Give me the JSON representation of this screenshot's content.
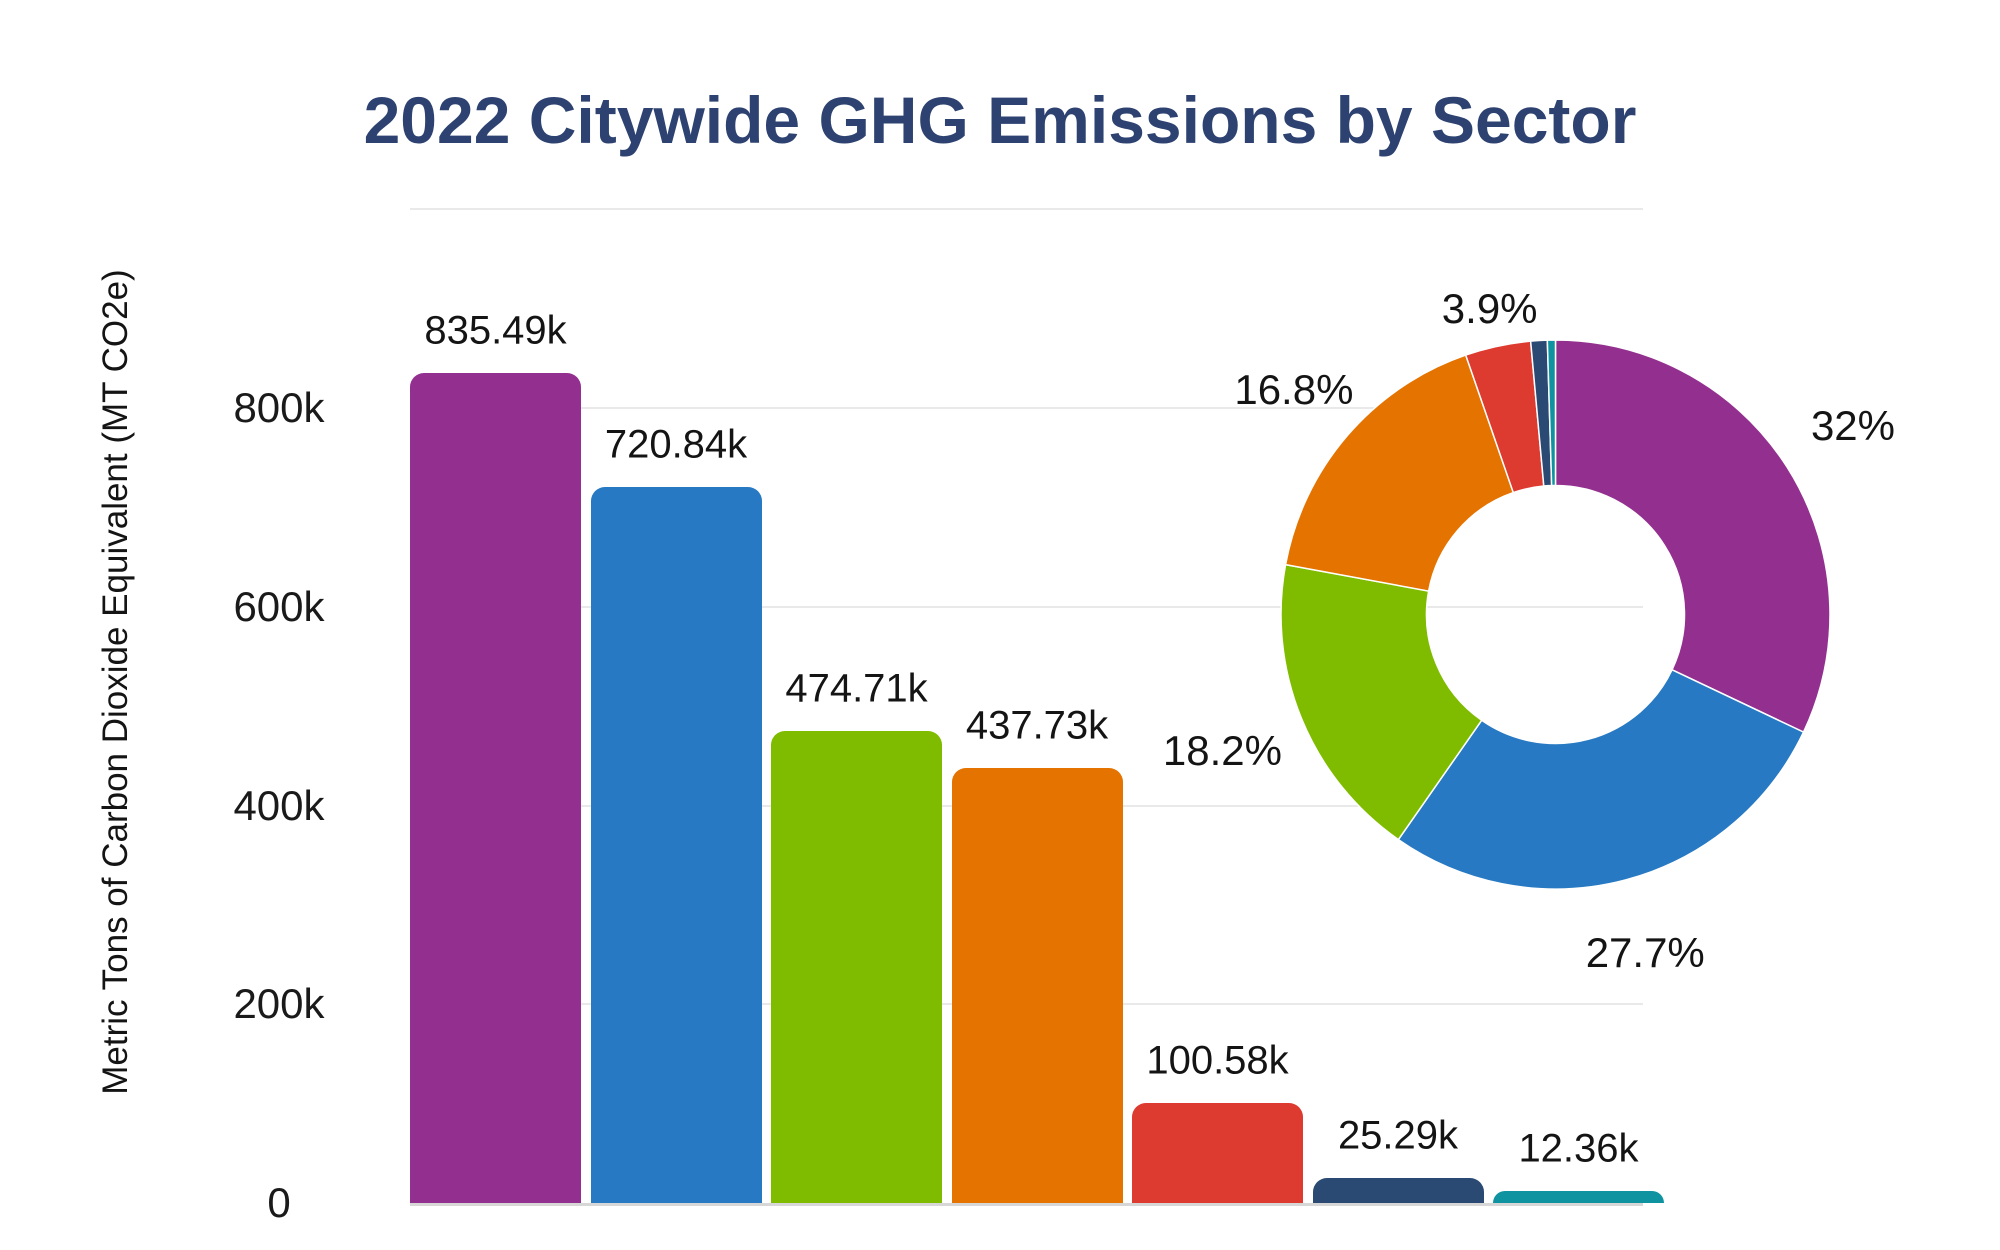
{
  "title": "2022 Citywide GHG Emissions by Sector",
  "title_color": "#2d4270",
  "background_color": "#ffffff",
  "chart_data": [
    {
      "type": "bar",
      "title": "2022 Citywide GHG Emissions by Sector",
      "xlabel": "",
      "ylabel": "Metric Tons of Carbon Dioxide Equivalent (MT CO2e)",
      "categories": [
        "",
        "",
        "",
        "",
        "",
        "",
        ""
      ],
      "values": [
        835490,
        720840,
        474710,
        437730,
        100580,
        25290,
        12360
      ],
      "data_labels": [
        "835.49k",
        "720.84k",
        "474.71k",
        "437.73k",
        "100.58k",
        "25.29k",
        "12.36k"
      ],
      "bar_colors": [
        "#93308f",
        "#2679c2",
        "#7fbc00",
        "#e47300",
        "#dd3a30",
        "#2a4a74",
        "#0f93a0"
      ],
      "yticks": [
        {
          "v": 0,
          "label": "0"
        },
        {
          "v": 200000,
          "label": "200k"
        },
        {
          "v": 400000,
          "label": "400k"
        },
        {
          "v": 600000,
          "label": "600k"
        },
        {
          "v": 800000,
          "label": "800k"
        },
        {
          "v": 1000000,
          "label": ""
        }
      ],
      "ylim": [
        0,
        1040000
      ],
      "grid": true,
      "legend": "none"
    },
    {
      "type": "pie",
      "subtype": "donut",
      "values": [
        835490,
        720840,
        474710,
        437730,
        100580,
        25290,
        12360
      ],
      "percent_labels": [
        "32%",
        "27.7%",
        "18.2%",
        "16.8%",
        "3.9%",
        "",
        ""
      ],
      "slice_colors": [
        "#93308f",
        "#2679c2",
        "#7fbc00",
        "#e47300",
        "#dd3a30",
        "#2a4a74",
        "#0f93a0"
      ],
      "start_angle": "top",
      "direction": "clockwise",
      "legend": "none"
    }
  ],
  "grid_color": "#e9e9e9",
  "baseline_color": "#d7d7d7",
  "label_text_color": "#141414"
}
